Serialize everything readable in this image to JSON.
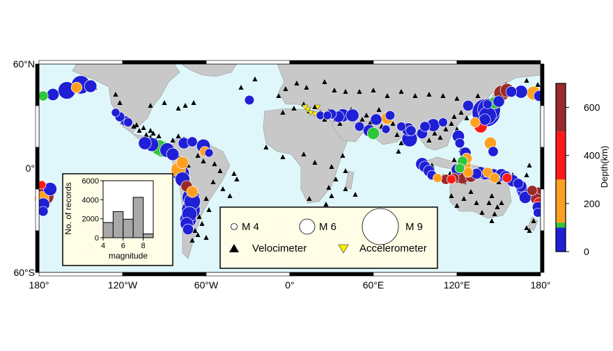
{
  "map": {
    "lat_labels": [
      "60°N",
      "0°",
      "60°S"
    ],
    "lon_labels": [
      "180°",
      "120°W",
      "60°W",
      "0°",
      "60°E",
      "120°E",
      "180°"
    ],
    "colors": {
      "ocean": "#dff7fb",
      "land": "#c8c8c8",
      "frame": "#000000"
    }
  },
  "depth_colors": [
    {
      "color": "#1f1fd6"
    },
    {
      "color": "#2ec63a"
    },
    {
      "color": "#ffa020"
    },
    {
      "color": "#ff1a1a"
    },
    {
      "color": "#9a2a2a"
    }
  ],
  "colorbar": {
    "label": "Depth(km)",
    "ticks": [
      "0",
      "200",
      "400",
      "600"
    ],
    "segments": [
      {
        "from": 0,
        "to": 100,
        "color": "#1f1fd6"
      },
      {
        "from": 100,
        "to": 120,
        "color": "#2ec63a"
      },
      {
        "from": 120,
        "to": 300,
        "color": "#ffa020"
      },
      {
        "from": 300,
        "to": 500,
        "color": "#ff1a1a"
      },
      {
        "from": 500,
        "to": 700,
        "color": "#9a2a2a"
      }
    ]
  },
  "legend": {
    "m4": "M 4",
    "m6": "M 6",
    "m9": "M 9",
    "velocimeter": "Velocimeter",
    "accelerometer": "Accelerometer"
  },
  "histogram": {
    "ylabel": "No. of records",
    "xlabel": "magnitude",
    "y_ticks": [
      "0",
      "2000",
      "4000",
      "6000"
    ],
    "x_ticks": [
      "4",
      "6",
      "8"
    ],
    "chart_data": {
      "type": "bar",
      "bin_edges": [
        4,
        5,
        6,
        7,
        8,
        9
      ],
      "values": [
        1600,
        2750,
        1950,
        4250,
        400
      ],
      "xlim": [
        4,
        9
      ],
      "ylim": [
        0,
        6000
      ]
    }
  },
  "events": [
    {
      "lon": -177,
      "lat": 52,
      "mag": 5.5,
      "d": 1
    },
    {
      "lon": -170,
      "lat": 53,
      "mag": 6.2,
      "d": 0
    },
    {
      "lon": -160,
      "lat": 56,
      "mag": 7.4,
      "d": 0
    },
    {
      "lon": -150,
      "lat": 60,
      "mag": 7.6,
      "d": 0
    },
    {
      "lon": -143,
      "lat": 59,
      "mag": 6.3,
      "d": 0
    },
    {
      "lon": -153,
      "lat": 58,
      "mag": 5.8,
      "d": 2
    },
    {
      "lon": -172,
      "lat": -15,
      "mag": 6.5,
      "d": 0
    },
    {
      "lon": -176,
      "lat": -20,
      "mag": 7.6,
      "d": 4
    },
    {
      "lon": -177,
      "lat": -26,
      "mag": 6.4,
      "d": 0
    },
    {
      "lon": -178,
      "lat": -22,
      "mag": 6.8,
      "d": 2
    },
    {
      "lon": -177,
      "lat": -31,
      "mag": 5.5,
      "d": 0
    },
    {
      "lon": -178,
      "lat": -12,
      "mag": 5,
      "d": 3
    },
    {
      "lon": -125,
      "lat": 40,
      "mag": 5,
      "d": 0
    },
    {
      "lon": -122,
      "lat": 37,
      "mag": 5.5,
      "d": 0
    },
    {
      "lon": -118,
      "lat": 34,
      "mag": 5.6,
      "d": 0
    },
    {
      "lon": -116,
      "lat": 33,
      "mag": 5.2,
      "d": 0
    },
    {
      "lon": -104,
      "lat": 18,
      "mag": 6.4,
      "d": 0
    },
    {
      "lon": -99,
      "lat": 17,
      "mag": 6.6,
      "d": 0
    },
    {
      "lon": -94,
      "lat": 15,
      "mag": 7,
      "d": 1
    },
    {
      "lon": -92,
      "lat": 14,
      "mag": 7.2,
      "d": 1
    },
    {
      "lon": -88,
      "lat": 13,
      "mag": 6.8,
      "d": 0
    },
    {
      "lon": -84,
      "lat": 10,
      "mag": 6.3,
      "d": 0
    },
    {
      "lon": -76,
      "lat": 18,
      "mag": 6,
      "d": 0
    },
    {
      "lon": -70,
      "lat": 19,
      "mag": 5.6,
      "d": 0
    },
    {
      "lon": -62,
      "lat": 16,
      "mag": 6.6,
      "d": 0
    },
    {
      "lon": -61,
      "lat": 12,
      "mag": 5.6,
      "d": 2
    },
    {
      "lon": -58,
      "lat": 11,
      "mag": 5,
      "d": 0
    },
    {
      "lon": -77,
      "lat": 4,
      "mag": 6.2,
      "d": 2
    },
    {
      "lon": -80,
      "lat": -1,
      "mag": 6.8,
      "d": 2
    },
    {
      "lon": -78,
      "lat": -4,
      "mag": 7.2,
      "d": 0
    },
    {
      "lon": -77,
      "lat": -8,
      "mag": 6.8,
      "d": 0
    },
    {
      "lon": -74,
      "lat": -13,
      "mag": 6,
      "d": 4
    },
    {
      "lon": -70,
      "lat": -17,
      "mag": 6,
      "d": 2
    },
    {
      "lon": -71,
      "lat": -21,
      "mag": 7.4,
      "d": 0
    },
    {
      "lon": -70,
      "lat": -24,
      "mag": 7.2,
      "d": 0
    },
    {
      "lon": -71,
      "lat": -30,
      "mag": 7.6,
      "d": 0
    },
    {
      "lon": -72,
      "lat": -33,
      "mag": 6.9,
      "d": 0
    },
    {
      "lon": -73,
      "lat": -37,
      "mag": 7.2,
      "d": 0
    },
    {
      "lon": -74,
      "lat": -40,
      "mag": 6.4,
      "d": 0
    },
    {
      "lon": -73,
      "lat": -44,
      "mag": 5.8,
      "d": 0
    },
    {
      "lon": -29,
      "lat": 49,
      "mag": 5.4,
      "d": 0
    },
    {
      "lon": 22,
      "lat": 38,
      "mag": 5,
      "d": 0
    },
    {
      "lon": 27,
      "lat": 38,
      "mag": 5,
      "d": 0
    },
    {
      "lon": 30,
      "lat": 39,
      "mag": 5.5,
      "d": 0
    },
    {
      "lon": 35,
      "lat": 37,
      "mag": 6,
      "d": 0
    },
    {
      "lon": 38,
      "lat": 38,
      "mag": 6.5,
      "d": 0
    },
    {
      "lon": 45,
      "lat": 38,
      "mag": 6.4,
      "d": 0
    },
    {
      "lon": 50,
      "lat": 30,
      "mag": 5.4,
      "d": 0
    },
    {
      "lon": 57,
      "lat": 27,
      "mag": 6.2,
      "d": 0
    },
    {
      "lon": 62,
      "lat": 35,
      "mag": 6,
      "d": 0
    },
    {
      "lon": 70,
      "lat": 36,
      "mag": 6.2,
      "d": 2
    },
    {
      "lon": 69,
      "lat": 28,
      "mag": 5,
      "d": 0
    },
    {
      "lon": 72,
      "lat": 38,
      "mag": 5.4,
      "d": 0
    },
    {
      "lon": 60,
      "lat": 25,
      "mag": 6.2,
      "d": 1
    },
    {
      "lon": 80,
      "lat": 30,
      "mag": 5.2,
      "d": 0
    },
    {
      "lon": 85,
      "lat": 28,
      "mag": 6.4,
      "d": 0
    },
    {
      "lon": 87,
      "lat": 27,
      "mag": 5.6,
      "d": 0
    },
    {
      "lon": 95,
      "lat": 25,
      "mag": 5.8,
      "d": 0
    },
    {
      "lon": 97,
      "lat": 30,
      "mag": 5.6,
      "d": 0
    },
    {
      "lon": 103,
      "lat": 31,
      "mag": 6.4,
      "d": 0
    },
    {
      "lon": 110,
      "lat": 33,
      "mag": 5.2,
      "d": 0
    },
    {
      "lon": 86,
      "lat": 21,
      "mag": 7,
      "d": 0
    },
    {
      "lon": 128,
      "lat": 45,
      "mag": 5.8,
      "d": 0
    },
    {
      "lon": 137,
      "lat": 30,
      "mag": 6.4,
      "d": 3
    },
    {
      "lon": 143,
      "lat": 42,
      "mag": 8.3,
      "d": 0
    },
    {
      "lon": 141,
      "lat": 40,
      "mag": 9,
      "d": 0
    },
    {
      "lon": 142,
      "lat": 38,
      "mag": 7.4,
      "d": 0
    },
    {
      "lon": 140,
      "lat": 35,
      "mag": 6,
      "d": 0
    },
    {
      "lon": 150,
      "lat": 48,
      "mag": 6,
      "d": 0
    },
    {
      "lon": 152,
      "lat": 54,
      "mag": 7,
      "d": 4
    },
    {
      "lon": 156,
      "lat": 56,
      "mag": 6.6,
      "d": 4
    },
    {
      "lon": 159,
      "lat": 55,
      "mag": 5.8,
      "d": 0
    },
    {
      "lon": 147,
      "lat": 47,
      "mag": 6.2,
      "d": 1
    },
    {
      "lon": 142,
      "lat": 46,
      "mag": 5.2,
      "d": 0
    },
    {
      "lon": 166,
      "lat": 55,
      "mag": 6.4,
      "d": 0
    },
    {
      "lon": 175,
      "lat": 54,
      "mag": 6.6,
      "d": 2
    },
    {
      "lon": 179,
      "lat": 52,
      "mag": 5.8,
      "d": 0
    },
    {
      "lon": 133,
      "lat": 33,
      "mag": 5.6,
      "d": 2
    },
    {
      "lon": 144,
      "lat": 18,
      "mag": 6.2,
      "d": 2
    },
    {
      "lon": 146,
      "lat": 12,
      "mag": 5.6,
      "d": 0
    },
    {
      "lon": 121,
      "lat": 23,
      "mag": 6.2,
      "d": 0
    },
    {
      "lon": 122,
      "lat": 18,
      "mag": 5.4,
      "d": 0
    },
    {
      "lon": 126,
      "lat": 11,
      "mag": 6,
      "d": 0
    },
    {
      "lon": 127,
      "lat": 7,
      "mag": 5.8,
      "d": 2
    },
    {
      "lon": 124,
      "lat": 5,
      "mag": 5.6,
      "d": 1
    },
    {
      "lon": 95,
      "lat": 3,
      "mag": 6.4,
      "d": 0
    },
    {
      "lon": 97,
      "lat": 1,
      "mag": 6,
      "d": 0
    },
    {
      "lon": 100,
      "lat": -2,
      "mag": 6,
      "d": 0
    },
    {
      "lon": 102,
      "lat": -5,
      "mag": 5.4,
      "d": 0
    },
    {
      "lon": 106,
      "lat": -7,
      "mag": 5.2,
      "d": 2
    },
    {
      "lon": 112,
      "lat": -8,
      "mag": 5.6,
      "d": 4
    },
    {
      "lon": 116,
      "lat": -8,
      "mag": 5.2,
      "d": 3
    },
    {
      "lon": 118,
      "lat": -7,
      "mag": 5.4,
      "d": 4
    },
    {
      "lon": 120,
      "lat": -1,
      "mag": 6,
      "d": 0
    },
    {
      "lon": 122,
      "lat": -5,
      "mag": 6.6,
      "d": 0
    },
    {
      "lon": 124,
      "lat": -7,
      "mag": 6.2,
      "d": 4
    },
    {
      "lon": 126,
      "lat": -4,
      "mag": 6.4,
      "d": 0
    },
    {
      "lon": 128,
      "lat": -3,
      "mag": 5.6,
      "d": 2
    },
    {
      "lon": 126,
      "lat": 2,
      "mag": 6,
      "d": 2
    },
    {
      "lon": 122,
      "lat": 0,
      "mag": 5.4,
      "d": 1
    },
    {
      "lon": 130,
      "lat": -6,
      "mag": 6,
      "d": 4
    },
    {
      "lon": 134,
      "lat": -4,
      "mag": 5.8,
      "d": 0
    },
    {
      "lon": 137,
      "lat": -3,
      "mag": 6,
      "d": 0
    },
    {
      "lon": 140,
      "lat": -4,
      "mag": 6.2,
      "d": 0
    },
    {
      "lon": 142,
      "lat": -3,
      "mag": 5.6,
      "d": 2
    },
    {
      "lon": 146,
      "lat": -5,
      "mag": 6.4,
      "d": 0
    },
    {
      "lon": 147,
      "lat": -7,
      "mag": 5.6,
      "d": 2
    },
    {
      "lon": 152,
      "lat": -5,
      "mag": 6.4,
      "d": 0
    },
    {
      "lon": 155,
      "lat": -6,
      "mag": 6,
      "d": 0
    },
    {
      "lon": 156,
      "lat": -7,
      "mag": 5.4,
      "d": 3
    },
    {
      "lon": 160,
      "lat": -9,
      "mag": 6.2,
      "d": 0
    },
    {
      "lon": 164,
      "lat": -11,
      "mag": 5.6,
      "d": 0
    },
    {
      "lon": 166,
      "lat": -13,
      "mag": 6,
      "d": 0
    },
    {
      "lon": 167,
      "lat": -16,
      "mag": 6.2,
      "d": 0
    },
    {
      "lon": 168,
      "lat": -18,
      "mag": 6.2,
      "d": 0
    },
    {
      "lon": 169,
      "lat": -21,
      "mag": 6.2,
      "d": 0
    },
    {
      "lon": 174,
      "lat": -16,
      "mag": 5.6,
      "d": 4
    },
    {
      "lon": 178,
      "lat": -18,
      "mag": 6.2,
      "d": 4
    },
    {
      "lon": 177,
      "lat": -22,
      "mag": 6,
      "d": 4
    },
    {
      "lon": 179,
      "lat": -25,
      "mag": 5.8,
      "d": 3
    },
    {
      "lon": 178,
      "lat": -28,
      "mag": 5.8,
      "d": 0
    },
    {
      "lon": 178,
      "lat": -32,
      "mag": 5.2,
      "d": 0
    }
  ],
  "stations": [
    {
      "lon": -120,
      "lat": 33
    },
    {
      "lon": -115,
      "lat": 33
    },
    {
      "lon": -110,
      "lat": 31
    },
    {
      "lon": -105,
      "lat": 29
    },
    {
      "lon": -100,
      "lat": 27
    },
    {
      "lon": -100,
      "lat": 22
    },
    {
      "lon": -96,
      "lat": 20
    },
    {
      "lon": -92,
      "lat": 18
    },
    {
      "lon": -88,
      "lat": 16
    },
    {
      "lon": -86,
      "lat": 14
    },
    {
      "lon": -98,
      "lat": 25
    },
    {
      "lon": -94,
      "lat": 23
    },
    {
      "lon": -84,
      "lat": 20
    },
    {
      "lon": -80,
      "lat": 23
    },
    {
      "lon": -76,
      "lat": 21
    },
    {
      "lon": -70,
      "lat": 19
    },
    {
      "lon": -64,
      "lat": 16
    },
    {
      "lon": -108,
      "lat": 27
    },
    {
      "lon": -103,
      "lat": 24
    },
    {
      "lon": -112,
      "lat": 30
    },
    {
      "lon": -80,
      "lat": 8
    },
    {
      "lon": -75,
      "lat": 6
    },
    {
      "lon": -73,
      "lat": 2
    },
    {
      "lon": -66,
      "lat": 9
    },
    {
      "lon": -62,
      "lat": 5
    },
    {
      "lon": -54,
      "lat": 3
    },
    {
      "lon": -50,
      "lat": -2
    },
    {
      "lon": -40,
      "lat": -4
    },
    {
      "lon": -38,
      "lat": -8
    },
    {
      "lon": -55,
      "lat": -10
    },
    {
      "lon": -48,
      "lat": -15
    },
    {
      "lon": -43,
      "lat": -20
    },
    {
      "lon": -60,
      "lat": -22
    },
    {
      "lon": -58,
      "lat": -30
    },
    {
      "lon": -65,
      "lat": -35
    },
    {
      "lon": -68,
      "lat": -45
    },
    {
      "lon": -70,
      "lat": -52
    },
    {
      "lon": -66,
      "lat": -48
    },
    {
      "lon": -60,
      "lat": -50
    },
    {
      "lon": -63,
      "lat": -40
    },
    {
      "lon": -140,
      "lat": 58
    },
    {
      "lon": -125,
      "lat": 53
    },
    {
      "lon": -122,
      "lat": 47
    },
    {
      "lon": -100,
      "lat": 45
    },
    {
      "lon": -90,
      "lat": 47
    },
    {
      "lon": -80,
      "lat": 43
    },
    {
      "lon": -75,
      "lat": 45
    },
    {
      "lon": -69,
      "lat": 47
    },
    {
      "lon": -35,
      "lat": 58
    },
    {
      "lon": -25,
      "lat": 64
    },
    {
      "lon": -8,
      "lat": 52
    },
    {
      "lon": -3,
      "lat": 57
    },
    {
      "lon": 5,
      "lat": 61
    },
    {
      "lon": 12,
      "lat": 58
    },
    {
      "lon": 25,
      "lat": 62
    },
    {
      "lon": 32,
      "lat": 56
    },
    {
      "lon": 40,
      "lat": 55
    },
    {
      "lon": 50,
      "lat": 55
    },
    {
      "lon": 60,
      "lat": 56
    },
    {
      "lon": 70,
      "lat": 52
    },
    {
      "lon": 80,
      "lat": 55
    },
    {
      "lon": 90,
      "lat": 52
    },
    {
      "lon": 100,
      "lat": 53
    },
    {
      "lon": 110,
      "lat": 52
    },
    {
      "lon": 120,
      "lat": 50
    },
    {
      "lon": 130,
      "lat": 46
    },
    {
      "lon": 135,
      "lat": 52
    },
    {
      "lon": 155,
      "lat": 60
    },
    {
      "lon": 170,
      "lat": 63
    },
    {
      "lon": 178,
      "lat": 60
    },
    {
      "lon": -5,
      "lat": 40
    },
    {
      "lon": 3,
      "lat": 43
    },
    {
      "lon": 10,
      "lat": 46
    },
    {
      "lon": 14,
      "lat": 41
    },
    {
      "lon": 18,
      "lat": 44
    },
    {
      "lon": 22,
      "lat": 40
    },
    {
      "lon": 25,
      "lat": 35
    },
    {
      "lon": 28,
      "lat": 41
    },
    {
      "lon": 33,
      "lat": 35
    },
    {
      "lon": 36,
      "lat": 32
    },
    {
      "lon": 44,
      "lat": 42
    },
    {
      "lon": 48,
      "lat": 40
    },
    {
      "lon": 52,
      "lat": 35
    },
    {
      "lon": 55,
      "lat": 38
    },
    {
      "lon": 58,
      "lat": 33
    },
    {
      "lon": 64,
      "lat": 42
    },
    {
      "lon": 66,
      "lat": 30
    },
    {
      "lon": 74,
      "lat": 32
    },
    {
      "lon": 77,
      "lat": 24
    },
    {
      "lon": 80,
      "lat": 18
    },
    {
      "lon": 78,
      "lat": 12
    },
    {
      "lon": 92,
      "lat": 25
    },
    {
      "lon": 100,
      "lat": 20
    },
    {
      "lon": 104,
      "lat": 25
    },
    {
      "lon": 108,
      "lat": 22
    },
    {
      "lon": 112,
      "lat": 28
    },
    {
      "lon": 116,
      "lat": 32
    },
    {
      "lon": 118,
      "lat": 37
    },
    {
      "lon": 123,
      "lat": 40
    },
    {
      "lon": 127,
      "lat": 36
    },
    {
      "lon": 132,
      "lat": 35
    },
    {
      "lon": 120,
      "lat": 28
    },
    {
      "lon": -17,
      "lat": 15
    },
    {
      "lon": -5,
      "lat": 8
    },
    {
      "lon": 10,
      "lat": 10
    },
    {
      "lon": 18,
      "lat": 4
    },
    {
      "lon": 30,
      "lat": 1
    },
    {
      "lon": 38,
      "lat": 9
    },
    {
      "lon": 40,
      "lat": -2
    },
    {
      "lon": 33,
      "lat": -8
    },
    {
      "lon": 28,
      "lat": -14
    },
    {
      "lon": 30,
      "lat": -20
    },
    {
      "lon": 26,
      "lat": -26
    },
    {
      "lon": 20,
      "lat": -33
    },
    {
      "lon": 14,
      "lat": -22
    },
    {
      "lon": 47,
      "lat": -19
    },
    {
      "lon": 40,
      "lat": -15
    },
    {
      "lon": 102,
      "lat": 2
    },
    {
      "lon": 110,
      "lat": -6
    },
    {
      "lon": 115,
      "lat": -4
    },
    {
      "lon": 121,
      "lat": -9
    },
    {
      "lon": 125,
      "lat": -10
    },
    {
      "lon": 130,
      "lat": -3
    },
    {
      "lon": 138,
      "lat": -6
    },
    {
      "lon": 118,
      "lat": 6
    },
    {
      "lon": 123,
      "lat": 13
    },
    {
      "lon": 116,
      "lat": -20
    },
    {
      "lon": 120,
      "lat": -27
    },
    {
      "lon": 125,
      "lat": -22
    },
    {
      "lon": 130,
      "lat": -17
    },
    {
      "lon": 134,
      "lat": -25
    },
    {
      "lon": 138,
      "lat": -32
    },
    {
      "lon": 143,
      "lat": -25
    },
    {
      "lon": 145,
      "lat": -20
    },
    {
      "lon": 147,
      "lat": -33
    },
    {
      "lon": 149,
      "lat": -28
    },
    {
      "lon": 145,
      "lat": -38
    },
    {
      "lon": 152,
      "lat": -25
    },
    {
      "lon": 170,
      "lat": -43
    },
    {
      "lon": 175,
      "lat": -38
    },
    {
      "lon": 172,
      "lat": -45
    },
    {
      "lon": 165,
      "lat": -12
    },
    {
      "lon": 160,
      "lat": -5
    },
    {
      "lon": 150,
      "lat": -10
    },
    {
      "lon": 170,
      "lat": -5
    },
    {
      "lon": 172,
      "lat": 2
    }
  ],
  "accelerometers": [
    {
      "lon": 13,
      "lat": 42
    },
    {
      "lon": 15,
      "lat": 40
    },
    {
      "lon": 20,
      "lat": 44
    },
    {
      "lon": 18,
      "lat": 39
    },
    {
      "lon": 24,
      "lat": 38
    },
    {
      "lon": 11,
      "lat": 44
    }
  ]
}
